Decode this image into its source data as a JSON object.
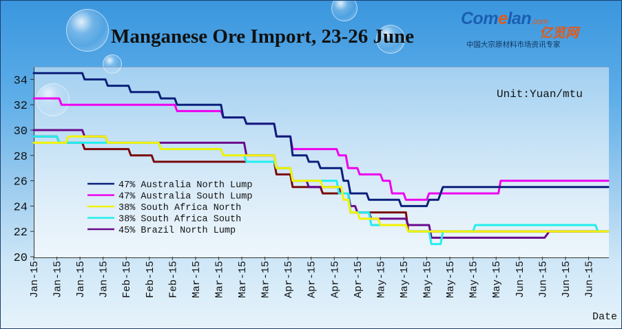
{
  "logo": {
    "main": "Com",
    "main2": "lan",
    "domain": ".com",
    "cn": "亿览网",
    "tagline": "中国大宗原材料市场资讯专家"
  },
  "chart_data": {
    "type": "line",
    "title": "Manganese Ore Import, 23-26 June",
    "unit": "Unit:Yuan/mtu",
    "xlabel": "Date",
    "ylabel": "",
    "ylim": [
      20,
      35
    ],
    "yticks": [
      20,
      22,
      24,
      26,
      28,
      30,
      32,
      34
    ],
    "grid": false,
    "legend_position": "middle-left",
    "x_tick_labels": [
      "Jan-15",
      "Jan-15",
      "Jan-15",
      "Jan-15",
      "Feb-15",
      "Feb-15",
      "Feb-15",
      "Mar-15",
      "Mar-15",
      "Mar-15",
      "Mar-15",
      "Apr-15",
      "Apr-15",
      "Apr-15",
      "Apr-15",
      "May-15",
      "May-15",
      "May-15",
      "May-15",
      "May-15",
      "May-15",
      "Jun-15",
      "Jun-15",
      "Jun-15",
      "Jun-15"
    ],
    "x_range": [
      0,
      24.85
    ],
    "series": [
      {
        "name": "47% Australia North Lump",
        "color": "#0a1f7a",
        "points": [
          [
            0,
            34.5
          ],
          [
            2.1,
            34.5
          ],
          [
            2.2,
            34
          ],
          [
            3.1,
            34
          ],
          [
            3.2,
            33.5
          ],
          [
            4.1,
            33.5
          ],
          [
            4.2,
            33
          ],
          [
            5.4,
            33
          ],
          [
            5.5,
            32.5
          ],
          [
            6.1,
            32.5
          ],
          [
            6.2,
            32
          ],
          [
            8.1,
            32
          ],
          [
            8.2,
            31
          ],
          [
            9.1,
            31
          ],
          [
            9.2,
            30.5
          ],
          [
            10.4,
            30.5
          ],
          [
            10.5,
            29.5
          ],
          [
            11.1,
            29.5
          ],
          [
            11.2,
            28
          ],
          [
            11.8,
            28
          ],
          [
            11.9,
            27.5
          ],
          [
            12.3,
            27.5
          ],
          [
            12.4,
            27
          ],
          [
            13.3,
            27
          ],
          [
            13.4,
            26
          ],
          [
            13.6,
            26
          ],
          [
            13.7,
            25
          ],
          [
            14.4,
            25
          ],
          [
            14.5,
            24.5
          ],
          [
            15.8,
            24.5
          ],
          [
            15.9,
            24
          ],
          [
            17.0,
            24
          ],
          [
            17.1,
            24.5
          ],
          [
            17.5,
            24.5
          ],
          [
            17.7,
            25.5
          ],
          [
            24.85,
            25.5
          ]
        ]
      },
      {
        "name": "47% Australia South Lump",
        "color": "#ee00ee",
        "points": [
          [
            0,
            32.5
          ],
          [
            1.1,
            32.5
          ],
          [
            1.2,
            32
          ],
          [
            6.1,
            32
          ],
          [
            6.2,
            31.5
          ],
          [
            8.1,
            31.5
          ],
          [
            8.2,
            31
          ],
          [
            9.1,
            31
          ],
          [
            9.2,
            30.5
          ],
          [
            10.4,
            30.5
          ],
          [
            10.5,
            29.5
          ],
          [
            11.1,
            29.5
          ],
          [
            11.2,
            28.5
          ],
          [
            13.1,
            28.5
          ],
          [
            13.2,
            28
          ],
          [
            13.5,
            28
          ],
          [
            13.6,
            27
          ],
          [
            14.0,
            27
          ],
          [
            14.1,
            26.5
          ],
          [
            15.0,
            26.5
          ],
          [
            15.1,
            26
          ],
          [
            15.4,
            26
          ],
          [
            15.5,
            25
          ],
          [
            16.0,
            25
          ],
          [
            16.1,
            24.5
          ],
          [
            17.0,
            24.5
          ],
          [
            17.1,
            25
          ],
          [
            20.1,
            25
          ],
          [
            20.2,
            26
          ],
          [
            24.85,
            26
          ]
        ]
      },
      {
        "name": "38% South Africa North",
        "color": "#f2f200",
        "points": [
          [
            0,
            29
          ],
          [
            1.4,
            29
          ],
          [
            1.5,
            29.5
          ],
          [
            3.1,
            29.5
          ],
          [
            3.2,
            29
          ],
          [
            5.4,
            29
          ],
          [
            5.5,
            28.5
          ],
          [
            8.1,
            28.5
          ],
          [
            8.2,
            28
          ],
          [
            10.4,
            28
          ],
          [
            10.5,
            27
          ],
          [
            11.1,
            27
          ],
          [
            11.2,
            26
          ],
          [
            12.4,
            26
          ],
          [
            12.5,
            25.5
          ],
          [
            13.3,
            25.5
          ],
          [
            13.4,
            24.5
          ],
          [
            13.6,
            24.5
          ],
          [
            13.7,
            23.5
          ],
          [
            14.0,
            23.5
          ],
          [
            14.1,
            23
          ],
          [
            14.9,
            23
          ],
          [
            15.0,
            22.5
          ],
          [
            16.1,
            22.5
          ],
          [
            16.2,
            22
          ],
          [
            24.85,
            22
          ]
        ]
      },
      {
        "name": "38% South Africa South",
        "color": "#22eeee",
        "points": [
          [
            0,
            29.5
          ],
          [
            1.0,
            29.5
          ],
          [
            1.1,
            29
          ],
          [
            5.4,
            29
          ],
          [
            5.5,
            28.5
          ],
          [
            8.1,
            28.5
          ],
          [
            8.2,
            28
          ],
          [
            9.1,
            28
          ],
          [
            9.2,
            27.5
          ],
          [
            10.4,
            27.5
          ],
          [
            10.5,
            27
          ],
          [
            11.1,
            27
          ],
          [
            11.2,
            26
          ],
          [
            13.1,
            26
          ],
          [
            13.2,
            25
          ],
          [
            13.6,
            25
          ],
          [
            13.7,
            23.5
          ],
          [
            14.5,
            23.5
          ],
          [
            14.6,
            22.5
          ],
          [
            16.1,
            22.5
          ],
          [
            16.2,
            22
          ],
          [
            17.1,
            22
          ],
          [
            17.2,
            21
          ],
          [
            17.6,
            21
          ],
          [
            17.7,
            22
          ],
          [
            19.0,
            22
          ],
          [
            19.1,
            22.5
          ],
          [
            24.3,
            22.5
          ],
          [
            24.4,
            22
          ],
          [
            24.85,
            22
          ]
        ]
      },
      {
        "name": "45% Brazil North Lump",
        "color": "#6a0a8c",
        "points": [
          [
            0,
            30
          ],
          [
            2.1,
            30
          ],
          [
            2.2,
            29.5
          ],
          [
            3.1,
            29.5
          ],
          [
            3.2,
            29
          ],
          [
            9.1,
            29
          ],
          [
            9.2,
            28
          ],
          [
            10.4,
            28
          ],
          [
            10.5,
            27
          ],
          [
            11.1,
            27
          ],
          [
            11.2,
            26
          ],
          [
            11.8,
            26
          ],
          [
            11.9,
            25.5
          ],
          [
            13.2,
            25.5
          ],
          [
            13.3,
            25
          ],
          [
            13.6,
            25
          ],
          [
            13.7,
            24
          ],
          [
            13.9,
            24
          ],
          [
            14.0,
            23.5
          ],
          [
            14.5,
            23.5
          ],
          [
            14.6,
            23
          ],
          [
            16.1,
            23
          ],
          [
            16.2,
            22.5
          ],
          [
            17.1,
            22.5
          ],
          [
            17.2,
            21.5
          ],
          [
            22.1,
            21.5
          ],
          [
            22.3,
            22
          ],
          [
            24.85,
            22
          ]
        ]
      },
      {
        "name": "",
        "color": "#7a0a0a",
        "points": [
          [
            0,
            29.5
          ],
          [
            1.0,
            29.5
          ],
          [
            1.1,
            29
          ],
          [
            2.1,
            29
          ],
          [
            2.2,
            28.5
          ],
          [
            4.1,
            28.5
          ],
          [
            4.2,
            28
          ],
          [
            5.1,
            28
          ],
          [
            5.2,
            27.5
          ],
          [
            10.4,
            27.5
          ],
          [
            10.5,
            26.5
          ],
          [
            11.1,
            26.5
          ],
          [
            11.2,
            25.5
          ],
          [
            12.4,
            25.5
          ],
          [
            12.5,
            25
          ],
          [
            13.6,
            25
          ],
          [
            13.7,
            23.5
          ],
          [
            16.1,
            23.5
          ],
          [
            16.2,
            22
          ],
          [
            24.85,
            22
          ]
        ]
      }
    ]
  }
}
